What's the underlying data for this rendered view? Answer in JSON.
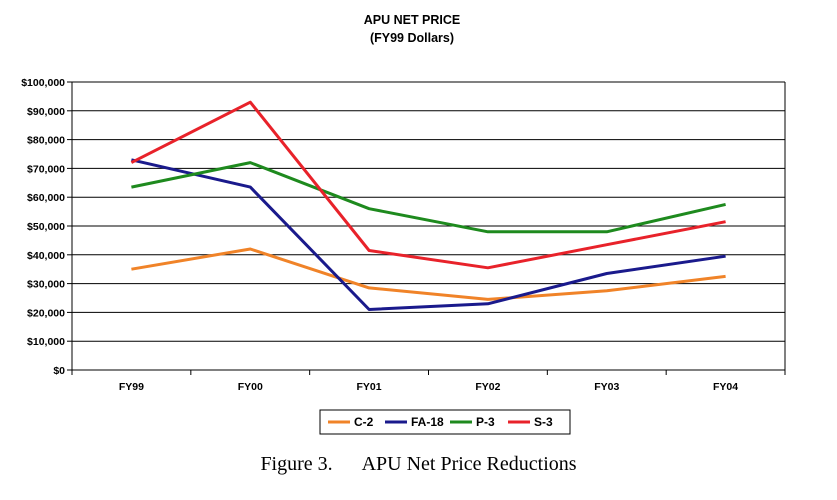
{
  "chart_data": {
    "type": "line",
    "title": "APU NET PRICE",
    "subtitle": "(FY99 Dollars)",
    "categories": [
      "FY99",
      "FY00",
      "FY01",
      "FY02",
      "FY03",
      "FY04"
    ],
    "ylim": [
      0,
      100000
    ],
    "ytick_labels": [
      "$0",
      "$10,000",
      "$20,000",
      "$30,000",
      "$40,000",
      "$50,000",
      "$60,000",
      "$70,000",
      "$80,000",
      "$90,000",
      "$100,000"
    ],
    "grid": true,
    "legend_position": "bottom",
    "series": [
      {
        "name": "C-2",
        "color": "#F08328",
        "values": [
          35000,
          42000,
          28500,
          24500,
          27500,
          32500
        ]
      },
      {
        "name": "FA-18",
        "color": "#1A1A8C",
        "values": [
          73000,
          63500,
          21000,
          23000,
          33500,
          39500
        ]
      },
      {
        "name": "P-3",
        "color": "#1E8A1E",
        "values": [
          63500,
          72000,
          56000,
          48000,
          48000,
          57500
        ]
      },
      {
        "name": "S-3",
        "color": "#E8222A",
        "values": [
          72000,
          93000,
          41500,
          35500,
          43500,
          51500
        ]
      }
    ]
  },
  "caption": {
    "figure_label": "Figure 3.",
    "text": "APU Net Price Reductions"
  }
}
